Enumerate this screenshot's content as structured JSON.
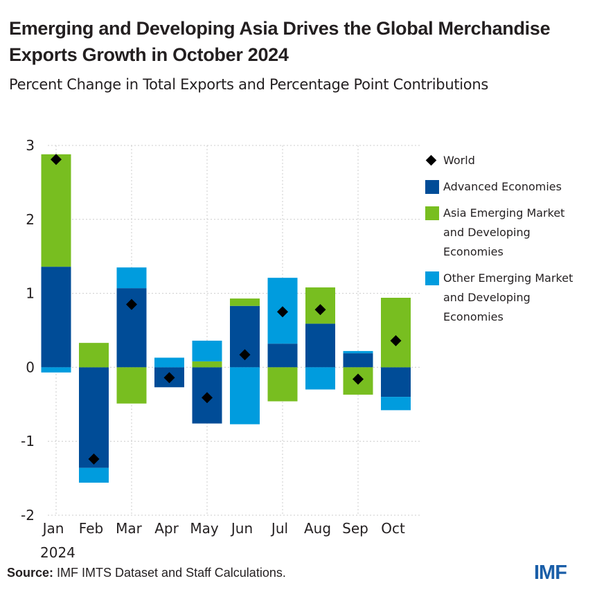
{
  "header": {
    "title": "Emerging and Developing Asia Drives the Global Merchandise Exports Growth in October 2024",
    "subtitle": "Percent Change in Total Exports and Percentage Point Contributions"
  },
  "footer": {
    "source_label": "Source:",
    "source_text": " IMF IMTS Dataset and Staff Calculations.",
    "logo": "IMF"
  },
  "chart_data": {
    "type": "bar",
    "stacked": true,
    "title": "Emerging and Developing Asia Drives the Global Merchandise Exports Growth in October 2024",
    "subtitle": "Percent Change in Total Exports and Percentage Point Contributions",
    "xlabel": "",
    "ylabel": "",
    "categories": [
      "Jan",
      "Feb",
      "Mar",
      "Apr",
      "May",
      "Jun",
      "Jul",
      "Aug",
      "Sep",
      "Oct"
    ],
    "x_sublabel": "2024",
    "ylim": [
      -2,
      3
    ],
    "yticks": [
      3,
      2,
      1,
      0,
      -1,
      -2
    ],
    "grid": true,
    "legend_position": "right",
    "series": [
      {
        "name": "Advanced Economies",
        "kind": "bar",
        "color": "#004c97",
        "values": [
          1.36,
          -1.36,
          1.07,
          -0.27,
          -0.76,
          0.83,
          0.32,
          0.59,
          0.19,
          -0.4
        ]
      },
      {
        "name": "Asia Emerging Market and Developing Economies",
        "kind": "bar",
        "color": "#78be20",
        "values": [
          1.52,
          0.33,
          -0.49,
          0.0,
          0.08,
          0.1,
          -0.46,
          0.49,
          -0.37,
          0.94
        ]
      },
      {
        "name": "Other Emerging Market and Developing Economies",
        "kind": "bar",
        "color": "#009cde",
        "values": [
          -0.07,
          -0.2,
          0.28,
          0.13,
          0.28,
          -0.77,
          0.89,
          -0.3,
          0.03,
          -0.18
        ]
      },
      {
        "name": "World",
        "kind": "marker",
        "marker": "diamond",
        "color": "#000000",
        "values": [
          2.81,
          -1.24,
          0.85,
          -0.14,
          -0.41,
          0.17,
          0.75,
          0.78,
          -0.16,
          0.36
        ]
      }
    ]
  },
  "legend": [
    {
      "label_lines": [
        "World"
      ],
      "type": "diamond",
      "color": "#000000"
    },
    {
      "label_lines": [
        "Advanced Economies"
      ],
      "type": "square",
      "color": "#004c97"
    },
    {
      "label_lines": [
        "Asia Emerging Market",
        "and Developing",
        "Economies"
      ],
      "type": "square",
      "color": "#78be20"
    },
    {
      "label_lines": [
        "Other Emerging Market",
        "and Developing",
        "Economies"
      ],
      "type": "square",
      "color": "#009cde"
    }
  ]
}
